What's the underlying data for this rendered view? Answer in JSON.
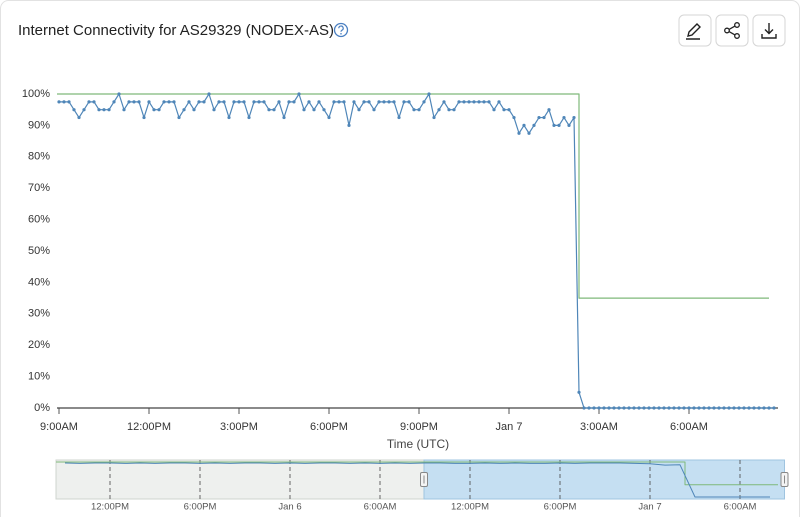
{
  "chart_data": [
    {
      "type": "line",
      "title": "Internet Connectivity for AS29329 (NODEX-AS)",
      "x_label": "Time (UTC)",
      "xlim": [
        "Jan 6 08:56",
        "Jan 7 08:58"
      ],
      "xticks": [
        {
          "value": "Jan 6 09:00",
          "label": "9:00AM"
        },
        {
          "value": "Jan 6 12:00",
          "label": "12:00PM"
        },
        {
          "value": "Jan 6 15:00",
          "label": "3:00PM"
        },
        {
          "value": "Jan 6 18:00",
          "label": "6:00PM"
        },
        {
          "value": "Jan 6 21:00",
          "label": "9:00PM"
        },
        {
          "value": "Jan 7 00:00",
          "label": "Jan 7"
        },
        {
          "value": "Jan 7 03:00",
          "label": "3:00AM"
        },
        {
          "value": "Jan 7 06:00",
          "label": "6:00AM"
        }
      ],
      "ylim": [
        0,
        100
      ],
      "yticks": [
        {
          "value": 0,
          "label": "0%"
        },
        {
          "value": 10,
          "label": "10%"
        },
        {
          "value": 20,
          "label": "20%"
        },
        {
          "value": 30,
          "label": "30%"
        },
        {
          "value": 40,
          "label": "40%"
        },
        {
          "value": 50,
          "label": "50%"
        },
        {
          "value": 60,
          "label": "60%"
        },
        {
          "value": 70,
          "label": "70%"
        },
        {
          "value": 80,
          "label": "80%"
        },
        {
          "value": 90,
          "label": "90%"
        },
        {
          "value": 100,
          "label": "100%"
        }
      ],
      "grid": false,
      "series": [
        {
          "color": "#7fb97a",
          "markers": false,
          "x": [
            "Jan 6 08:56",
            "Jan 7 02:20",
            "Jan 7 02:20",
            "Jan 7 08:40"
          ],
          "values": [
            100,
            100,
            35,
            35
          ]
        },
        {
          "color": "#4f86b8",
          "markers": true,
          "x": [
            "Jan 6 09:00",
            "Jan 6 09:10",
            "Jan 6 09:20",
            "Jan 6 09:30",
            "Jan 6 09:40",
            "Jan 6 09:50",
            "Jan 6 10:00",
            "Jan 6 10:10",
            "Jan 6 10:20",
            "Jan 6 10:30",
            "Jan 6 10:40",
            "Jan 6 10:50",
            "Jan 6 11:00",
            "Jan 6 11:10",
            "Jan 6 11:20",
            "Jan 6 11:30",
            "Jan 6 11:40",
            "Jan 6 11:50",
            "Jan 6 12:00",
            "Jan 6 12:10",
            "Jan 6 12:20",
            "Jan 6 12:30",
            "Jan 6 12:40",
            "Jan 6 12:50",
            "Jan 6 13:00",
            "Jan 6 13:10",
            "Jan 6 13:20",
            "Jan 6 13:30",
            "Jan 6 13:40",
            "Jan 6 13:50",
            "Jan 6 14:00",
            "Jan 6 14:10",
            "Jan 6 14:20",
            "Jan 6 14:30",
            "Jan 6 14:40",
            "Jan 6 14:50",
            "Jan 6 15:00",
            "Jan 6 15:10",
            "Jan 6 15:20",
            "Jan 6 15:30",
            "Jan 6 15:40",
            "Jan 6 15:50",
            "Jan 6 16:00",
            "Jan 6 16:10",
            "Jan 6 16:20",
            "Jan 6 16:30",
            "Jan 6 16:40",
            "Jan 6 16:50",
            "Jan 6 17:00",
            "Jan 6 17:10",
            "Jan 6 17:20",
            "Jan 6 17:30",
            "Jan 6 17:40",
            "Jan 6 17:50",
            "Jan 6 18:00",
            "Jan 6 18:10",
            "Jan 6 18:20",
            "Jan 6 18:30",
            "Jan 6 18:40",
            "Jan 6 18:50",
            "Jan 6 19:00",
            "Jan 6 19:10",
            "Jan 6 19:20",
            "Jan 6 19:30",
            "Jan 6 19:40",
            "Jan 6 19:50",
            "Jan 6 20:00",
            "Jan 6 20:10",
            "Jan 6 20:20",
            "Jan 6 20:30",
            "Jan 6 20:40",
            "Jan 6 20:50",
            "Jan 6 21:00",
            "Jan 6 21:10",
            "Jan 6 21:20",
            "Jan 6 21:30",
            "Jan 6 21:40",
            "Jan 6 21:50",
            "Jan 6 22:00",
            "Jan 6 22:10",
            "Jan 6 22:20",
            "Jan 6 22:30",
            "Jan 6 22:40",
            "Jan 6 22:50",
            "Jan 6 23:00",
            "Jan 6 23:10",
            "Jan 6 23:20",
            "Jan 6 23:30",
            "Jan 6 23:40",
            "Jan 6 23:50",
            "Jan 7 00:00",
            "Jan 7 00:10",
            "Jan 7 00:20",
            "Jan 7 00:30",
            "Jan 7 00:40",
            "Jan 7 00:50",
            "Jan 7 01:00",
            "Jan 7 01:10",
            "Jan 7 01:20",
            "Jan 7 01:30",
            "Jan 7 01:40",
            "Jan 7 01:50",
            "Jan 7 02:00",
            "Jan 7 02:10",
            "Jan 7 02:20",
            "Jan 7 02:30",
            "Jan 7 02:40",
            "Jan 7 02:50",
            "Jan 7 03:00",
            "Jan 7 03:10",
            "Jan 7 03:20",
            "Jan 7 03:30",
            "Jan 7 03:40",
            "Jan 7 03:50",
            "Jan 7 04:00",
            "Jan 7 04:10",
            "Jan 7 04:20",
            "Jan 7 04:30",
            "Jan 7 04:40",
            "Jan 7 04:50",
            "Jan 7 05:00",
            "Jan 7 05:10",
            "Jan 7 05:20",
            "Jan 7 05:30",
            "Jan 7 05:40",
            "Jan 7 05:50",
            "Jan 7 06:00",
            "Jan 7 06:10",
            "Jan 7 06:20",
            "Jan 7 06:30",
            "Jan 7 06:40",
            "Jan 7 06:50",
            "Jan 7 07:00",
            "Jan 7 07:10",
            "Jan 7 07:20",
            "Jan 7 07:30",
            "Jan 7 07:40",
            "Jan 7 07:50",
            "Jan 7 08:00",
            "Jan 7 08:10",
            "Jan 7 08:20",
            "Jan 7 08:30",
            "Jan 7 08:40",
            "Jan 7 08:50"
          ],
          "values": [
            97.5,
            97.5,
            97.5,
            95,
            92.5,
            95,
            97.5,
            97.5,
            95,
            95,
            95,
            97.5,
            100,
            95,
            97.5,
            97.5,
            97.5,
            92.5,
            97.5,
            95,
            95,
            97.5,
            97.5,
            97.5,
            92.5,
            95,
            97.5,
            95,
            97.5,
            97.5,
            100,
            95,
            97.5,
            97.5,
            92.5,
            97.5,
            97.5,
            97.5,
            92.5,
            97.5,
            97.5,
            97.5,
            95,
            95,
            97.5,
            92.5,
            97.5,
            97.5,
            100,
            95,
            97.5,
            95,
            97.5,
            95,
            92.5,
            97.5,
            97.5,
            97.5,
            90,
            97.5,
            95,
            97.5,
            97.5,
            95,
            97.5,
            97.5,
            97.5,
            97.5,
            92.5,
            97.5,
            97.5,
            95,
            95,
            97.5,
            100,
            92.5,
            95,
            97.5,
            95,
            95,
            97.5,
            97.5,
            97.5,
            97.5,
            97.5,
            97.5,
            97.5,
            95,
            97.5,
            95,
            95,
            92.5,
            87.5,
            90,
            87.5,
            90,
            92.5,
            92.5,
            95,
            90,
            90,
            92.5,
            90,
            92.5,
            5,
            0,
            0,
            0,
            0,
            0,
            0,
            0,
            0,
            0,
            0,
            0,
            0,
            0,
            0,
            0,
            0,
            0,
            0,
            0,
            0,
            0,
            0,
            0,
            0,
            0,
            0,
            0,
            0,
            0,
            0,
            0,
            0,
            0,
            0,
            0,
            0,
            0,
            0,
            0
          ]
        }
      ]
    },
    {
      "type": "line",
      "xlim": [
        "Jan 5 08:24",
        "Jan 7 08:32"
      ],
      "xticks": [
        {
          "value": "Jan 5 12:00",
          "label": "12:00PM"
        },
        {
          "value": "Jan 5 18:00",
          "label": "6:00PM"
        },
        {
          "value": "Jan 6 00:00",
          "label": "Jan 6"
        },
        {
          "value": "Jan 6 06:00",
          "label": "6:00AM"
        },
        {
          "value": "Jan 6 12:00",
          "label": "12:00PM"
        },
        {
          "value": "Jan 6 18:00",
          "label": "6:00PM"
        },
        {
          "value": "Jan 7 00:00",
          "label": "Jan 7"
        },
        {
          "value": "Jan 7 06:00",
          "label": "6:00AM"
        }
      ],
      "ylim": [
        0,
        100
      ],
      "series": [
        {
          "color": "#7fb97a",
          "markers": false,
          "x": [
            "Jan 5 08:24",
            "Jan 7 02:20",
            "Jan 7 02:20",
            "Jan 7 08:32"
          ],
          "values": [
            100,
            100,
            35,
            35
          ]
        },
        {
          "color": "#4f86b8",
          "markers": false,
          "x": [
            "Jan 5 09:00",
            "Jan 5 10:00",
            "Jan 5 11:00",
            "Jan 5 12:00",
            "Jan 5 13:00",
            "Jan 5 14:00",
            "Jan 5 15:00",
            "Jan 5 16:00",
            "Jan 5 17:00",
            "Jan 5 18:00",
            "Jan 5 19:00",
            "Jan 5 20:00",
            "Jan 5 21:00",
            "Jan 5 22:00",
            "Jan 5 23:00",
            "Jan 6 00:00",
            "Jan 6 01:00",
            "Jan 6 02:00",
            "Jan 6 03:00",
            "Jan 6 04:00",
            "Jan 6 05:00",
            "Jan 6 06:00",
            "Jan 6 07:00",
            "Jan 6 08:00",
            "Jan 6 09:00",
            "Jan 6 10:00",
            "Jan 6 11:00",
            "Jan 6 12:00",
            "Jan 6 13:00",
            "Jan 6 14:00",
            "Jan 6 15:00",
            "Jan 6 16:00",
            "Jan 6 17:00",
            "Jan 6 18:00",
            "Jan 6 19:00",
            "Jan 6 20:00",
            "Jan 6 21:00",
            "Jan 6 22:00",
            "Jan 6 23:00",
            "Jan 7 00:00",
            "Jan 7 01:00",
            "Jan 7 02:00",
            "Jan 7 03:00",
            "Jan 7 04:00",
            "Jan 7 05:00",
            "Jan 7 06:00",
            "Jan 7 07:00",
            "Jan 7 08:00"
          ],
          "values": [
            97,
            96,
            97,
            97,
            96,
            97,
            96,
            97,
            97,
            96,
            97,
            96,
            97,
            97,
            96,
            97,
            96,
            97,
            97,
            96,
            97,
            96,
            97,
            96,
            97,
            97,
            96,
            96,
            97,
            96,
            97,
            96,
            96,
            97,
            96,
            97,
            97,
            97,
            96,
            95,
            91,
            92,
            0,
            0,
            0,
            0,
            0,
            0
          ]
        }
      ]
    }
  ]
}
